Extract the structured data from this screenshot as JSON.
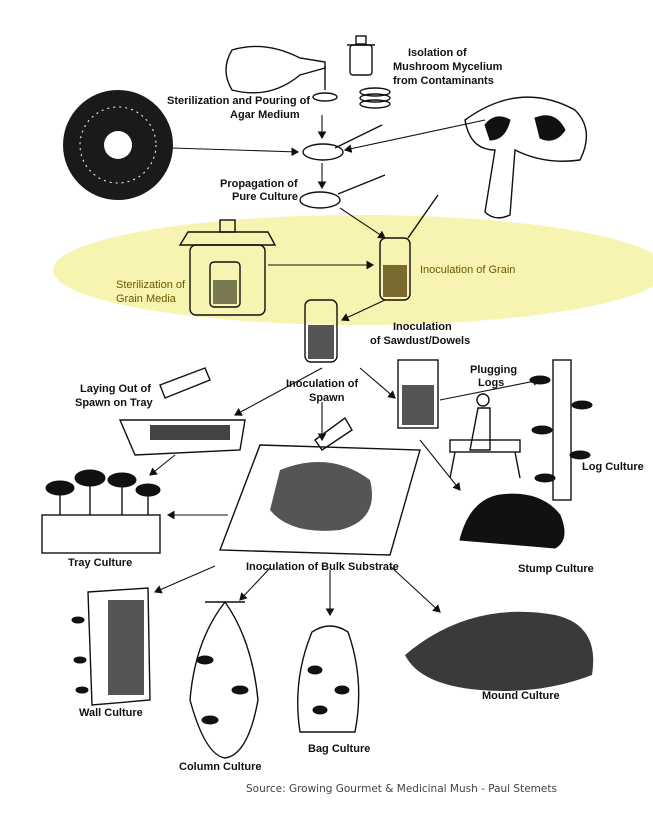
{
  "labels": {
    "isolation": [
      "Isolation of",
      "Mushroom Mycelium",
      "from Contaminants"
    ],
    "sterilization_agar": [
      "Sterilization and Pouring of",
      "Agar Medium"
    ],
    "propagation": [
      "Propagation of",
      "Pure Culture"
    ],
    "sterilization_grain": [
      "Sterilization of",
      "Grain Media"
    ],
    "inoculation_grain": "Inoculation of Grain",
    "inoculation_sawdust": [
      "Inoculation",
      "of Sawdust/Dowels"
    ],
    "laying_out": [
      "Laying Out of",
      "Spawn on Tray"
    ],
    "inoculation_spawn": [
      "Inoculation of",
      "Spawn"
    ],
    "plugging_logs": [
      "Plugging",
      "Logs"
    ],
    "log_culture": "Log Culture",
    "tray_culture": "Tray Culture",
    "stump_culture": "Stump Culture",
    "inoculation_bulk": "Inoculation of Bulk Substrate",
    "wall_culture": "Wall Culture",
    "column_culture": "Column Culture",
    "bag_culture": "Bag Culture",
    "mound_culture": "Mound Culture"
  },
  "source": "Source: Growing Gourmet & Medicinal Mush - Paul Stemets",
  "colors": {
    "highlight": "#f7f3b0",
    "ink": "#111111"
  }
}
